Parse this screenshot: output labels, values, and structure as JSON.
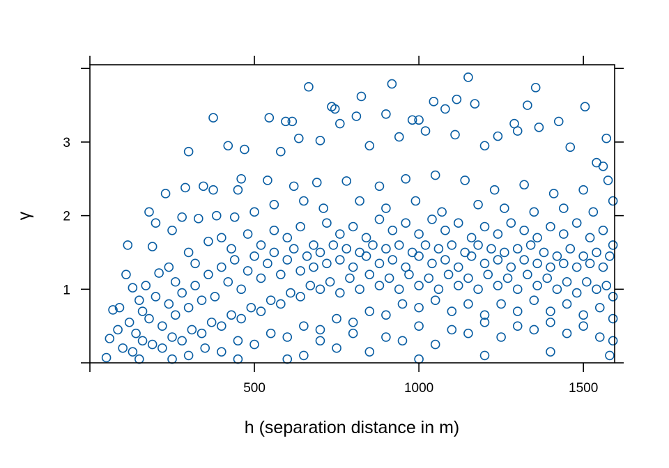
{
  "chart_data": {
    "type": "scatter",
    "title": "",
    "xlabel": "h (separation distance in m)",
    "ylabel": "γ",
    "xlim": [
      0,
      1595
    ],
    "ylim": [
      0,
      4.05
    ],
    "x_ticks": [
      0,
      500,
      1000,
      1500
    ],
    "x_tick_labels": [
      "",
      "500",
      "1000",
      "1500"
    ],
    "y_ticks": [
      0,
      1,
      2,
      3,
      4
    ],
    "y_tick_labels": [
      "",
      "1",
      "2",
      "3",
      ""
    ],
    "grid": false,
    "marker": "open-circle",
    "color": "#0a5ea3",
    "points": [
      [
        665,
        3.75
      ],
      [
        1150,
        3.88
      ],
      [
        1355,
        3.74
      ],
      [
        918,
        3.79
      ],
      [
        825,
        3.62
      ],
      [
        1505,
        3.48
      ],
      [
        1115,
        3.58
      ],
      [
        1045,
        3.55
      ],
      [
        735,
        3.48
      ],
      [
        745,
        3.45
      ],
      [
        375,
        3.33
      ],
      [
        545,
        3.33
      ],
      [
        595,
        3.28
      ],
      [
        615,
        3.28
      ],
      [
        760,
        3.25
      ],
      [
        810,
        3.35
      ],
      [
        900,
        3.38
      ],
      [
        980,
        3.3
      ],
      [
        1000,
        3.3
      ],
      [
        1080,
        3.45
      ],
      [
        1170,
        3.52
      ],
      [
        1290,
        3.25
      ],
      [
        1330,
        3.5
      ],
      [
        1425,
        3.28
      ],
      [
        1570,
        3.05
      ],
      [
        300,
        2.87
      ],
      [
        420,
        2.95
      ],
      [
        470,
        2.9
      ],
      [
        580,
        2.87
      ],
      [
        635,
        3.05
      ],
      [
        700,
        3.02
      ],
      [
        850,
        2.95
      ],
      [
        940,
        3.07
      ],
      [
        1020,
        3.15
      ],
      [
        1110,
        3.1
      ],
      [
        1200,
        2.95
      ],
      [
        1240,
        3.08
      ],
      [
        1300,
        3.15
      ],
      [
        1365,
        3.2
      ],
      [
        1460,
        2.93
      ],
      [
        1540,
        2.72
      ],
      [
        1560,
        2.67
      ],
      [
        180,
        2.05
      ],
      [
        230,
        2.3
      ],
      [
        290,
        2.38
      ],
      [
        345,
        2.4
      ],
      [
        375,
        2.35
      ],
      [
        450,
        2.35
      ],
      [
        460,
        2.5
      ],
      [
        540,
        2.48
      ],
      [
        620,
        2.4
      ],
      [
        690,
        2.45
      ],
      [
        780,
        2.47
      ],
      [
        880,
        2.4
      ],
      [
        960,
        2.5
      ],
      [
        1050,
        2.55
      ],
      [
        1140,
        2.48
      ],
      [
        1230,
        2.35
      ],
      [
        1320,
        2.42
      ],
      [
        1410,
        2.3
      ],
      [
        1500,
        2.35
      ],
      [
        1575,
        2.48
      ],
      [
        115,
        1.6
      ],
      [
        190,
        1.58
      ],
      [
        200,
        1.9
      ],
      [
        250,
        1.8
      ],
      [
        280,
        1.98
      ],
      [
        330,
        1.96
      ],
      [
        385,
        2.0
      ],
      [
        440,
        1.98
      ],
      [
        500,
        2.05
      ],
      [
        560,
        2.15
      ],
      [
        650,
        2.2
      ],
      [
        710,
        2.1
      ],
      [
        820,
        2.2
      ],
      [
        900,
        2.1
      ],
      [
        990,
        2.2
      ],
      [
        1070,
        2.05
      ],
      [
        1180,
        2.15
      ],
      [
        1260,
        2.1
      ],
      [
        1350,
        2.05
      ],
      [
        1440,
        2.1
      ],
      [
        1530,
        2.05
      ],
      [
        1590,
        2.2
      ],
      [
        110,
        1.2
      ],
      [
        70,
        0.72
      ],
      [
        90,
        0.75
      ],
      [
        60,
        0.33
      ],
      [
        50,
        0.07
      ],
      [
        85,
        0.45
      ],
      [
        130,
        1.02
      ],
      [
        150,
        0.85
      ],
      [
        170,
        1.05
      ],
      [
        210,
        1.22
      ],
      [
        240,
        1.3
      ],
      [
        260,
        1.1
      ],
      [
        300,
        1.5
      ],
      [
        320,
        1.35
      ],
      [
        360,
        1.65
      ],
      [
        400,
        1.7
      ],
      [
        430,
        1.55
      ],
      [
        480,
        1.75
      ],
      [
        520,
        1.6
      ],
      [
        560,
        1.8
      ],
      [
        600,
        1.7
      ],
      [
        640,
        1.85
      ],
      [
        680,
        1.6
      ],
      [
        720,
        1.9
      ],
      [
        760,
        1.75
      ],
      [
        800,
        1.85
      ],
      [
        840,
        1.7
      ],
      [
        880,
        1.95
      ],
      [
        920,
        1.8
      ],
      [
        960,
        1.9
      ],
      [
        1000,
        1.75
      ],
      [
        1040,
        1.95
      ],
      [
        1080,
        1.8
      ],
      [
        1120,
        1.9
      ],
      [
        1160,
        1.7
      ],
      [
        1200,
        1.85
      ],
      [
        1240,
        1.75
      ],
      [
        1280,
        1.9
      ],
      [
        1320,
        1.8
      ],
      [
        1360,
        1.7
      ],
      [
        1400,
        1.85
      ],
      [
        1440,
        1.75
      ],
      [
        1480,
        1.9
      ],
      [
        1520,
        1.7
      ],
      [
        1560,
        1.8
      ],
      [
        1590,
        1.6
      ],
      [
        120,
        0.55
      ],
      [
        140,
        0.4
      ],
      [
        160,
        0.7
      ],
      [
        180,
        0.6
      ],
      [
        200,
        0.9
      ],
      [
        220,
        0.5
      ],
      [
        240,
        0.8
      ],
      [
        260,
        0.65
      ],
      [
        280,
        0.95
      ],
      [
        300,
        0.75
      ],
      [
        320,
        1.05
      ],
      [
        340,
        0.85
      ],
      [
        360,
        1.2
      ],
      [
        380,
        0.9
      ],
      [
        400,
        1.3
      ],
      [
        420,
        1.1
      ],
      [
        440,
        1.4
      ],
      [
        460,
        1.0
      ],
      [
        480,
        1.25
      ],
      [
        500,
        1.45
      ],
      [
        520,
        1.15
      ],
      [
        540,
        1.35
      ],
      [
        560,
        1.5
      ],
      [
        580,
        1.2
      ],
      [
        600,
        1.4
      ],
      [
        620,
        1.55
      ],
      [
        640,
        1.25
      ],
      [
        660,
        1.45
      ],
      [
        680,
        1.3
      ],
      [
        700,
        1.5
      ],
      [
        720,
        1.35
      ],
      [
        740,
        1.6
      ],
      [
        760,
        1.4
      ],
      [
        780,
        1.55
      ],
      [
        800,
        1.3
      ],
      [
        820,
        1.5
      ],
      [
        840,
        1.45
      ],
      [
        860,
        1.6
      ],
      [
        880,
        1.35
      ],
      [
        900,
        1.55
      ],
      [
        920,
        1.4
      ],
      [
        940,
        1.6
      ],
      [
        960,
        1.3
      ],
      [
        980,
        1.5
      ],
      [
        1000,
        1.45
      ],
      [
        1020,
        1.6
      ],
      [
        1040,
        1.35
      ],
      [
        1060,
        1.55
      ],
      [
        1080,
        1.4
      ],
      [
        1100,
        1.6
      ],
      [
        1120,
        1.3
      ],
      [
        1140,
        1.5
      ],
      [
        1160,
        1.45
      ],
      [
        1180,
        1.6
      ],
      [
        1200,
        1.35
      ],
      [
        1220,
        1.55
      ],
      [
        1240,
        1.4
      ],
      [
        1260,
        1.5
      ],
      [
        1280,
        1.3
      ],
      [
        1300,
        1.55
      ],
      [
        1320,
        1.4
      ],
      [
        1340,
        1.6
      ],
      [
        1360,
        1.35
      ],
      [
        1380,
        1.5
      ],
      [
        1400,
        1.3
      ],
      [
        1420,
        1.45
      ],
      [
        1440,
        1.35
      ],
      [
        1460,
        1.55
      ],
      [
        1480,
        1.3
      ],
      [
        1500,
        1.45
      ],
      [
        1520,
        1.35
      ],
      [
        1540,
        1.5
      ],
      [
        1560,
        1.3
      ],
      [
        1580,
        1.45
      ],
      [
        100,
        0.2
      ],
      [
        130,
        0.15
      ],
      [
        160,
        0.3
      ],
      [
        190,
        0.25
      ],
      [
        220,
        0.2
      ],
      [
        250,
        0.35
      ],
      [
        280,
        0.3
      ],
      [
        310,
        0.45
      ],
      [
        340,
        0.4
      ],
      [
        370,
        0.55
      ],
      [
        400,
        0.5
      ],
      [
        430,
        0.65
      ],
      [
        460,
        0.6
      ],
      [
        490,
        0.75
      ],
      [
        520,
        0.7
      ],
      [
        550,
        0.85
      ],
      [
        580,
        0.8
      ],
      [
        610,
        0.95
      ],
      [
        640,
        0.9
      ],
      [
        670,
        1.05
      ],
      [
        700,
        1.0
      ],
      [
        730,
        1.1
      ],
      [
        760,
        0.95
      ],
      [
        790,
        1.15
      ],
      [
        820,
        1.0
      ],
      [
        850,
        1.2
      ],
      [
        880,
        1.05
      ],
      [
        910,
        1.15
      ],
      [
        940,
        1.0
      ],
      [
        970,
        1.2
      ],
      [
        1000,
        1.05
      ],
      [
        1030,
        1.15
      ],
      [
        1060,
        1.0
      ],
      [
        1090,
        1.2
      ],
      [
        1120,
        1.05
      ],
      [
        1150,
        1.15
      ],
      [
        1180,
        1.0
      ],
      [
        1210,
        1.2
      ],
      [
        1240,
        1.05
      ],
      [
        1270,
        1.15
      ],
      [
        1300,
        1.0
      ],
      [
        1330,
        1.2
      ],
      [
        1360,
        1.05
      ],
      [
        1390,
        1.15
      ],
      [
        1420,
        1.0
      ],
      [
        1450,
        1.1
      ],
      [
        1480,
        0.95
      ],
      [
        1510,
        1.1
      ],
      [
        1540,
        1.0
      ],
      [
        1570,
        1.05
      ],
      [
        1590,
        0.9
      ],
      [
        300,
        0.1
      ],
      [
        350,
        0.2
      ],
      [
        400,
        0.15
      ],
      [
        450,
        0.3
      ],
      [
        500,
        0.25
      ],
      [
        550,
        0.4
      ],
      [
        600,
        0.35
      ],
      [
        650,
        0.5
      ],
      [
        700,
        0.45
      ],
      [
        750,
        0.6
      ],
      [
        800,
        0.55
      ],
      [
        850,
        0.7
      ],
      [
        900,
        0.65
      ],
      [
        950,
        0.8
      ],
      [
        1000,
        0.75
      ],
      [
        1050,
        0.85
      ],
      [
        1100,
        0.7
      ],
      [
        1150,
        0.8
      ],
      [
        1200,
        0.65
      ],
      [
        1250,
        0.8
      ],
      [
        1300,
        0.7
      ],
      [
        1350,
        0.85
      ],
      [
        1400,
        0.7
      ],
      [
        1450,
        0.8
      ],
      [
        1500,
        0.65
      ],
      [
        1550,
        0.75
      ],
      [
        1590,
        0.6
      ],
      [
        650,
        0.1
      ],
      [
        750,
        0.2
      ],
      [
        850,
        0.15
      ],
      [
        950,
        0.3
      ],
      [
        1050,
        0.25
      ],
      [
        1150,
        0.4
      ],
      [
        1250,
        0.35
      ],
      [
        1350,
        0.45
      ],
      [
        1450,
        0.4
      ],
      [
        1550,
        0.35
      ],
      [
        700,
        0.3
      ],
      [
        800,
        0.4
      ],
      [
        900,
        0.35
      ],
      [
        1000,
        0.5
      ],
      [
        1100,
        0.45
      ],
      [
        1200,
        0.55
      ],
      [
        1300,
        0.5
      ],
      [
        1400,
        0.55
      ],
      [
        1500,
        0.5
      ],
      [
        1590,
        0.3
      ],
      [
        1000,
        0.05
      ],
      [
        1200,
        0.1
      ],
      [
        1400,
        0.15
      ],
      [
        1580,
        0.1
      ],
      [
        600,
        0.05
      ],
      [
        450,
        0.05
      ],
      [
        250,
        0.05
      ],
      [
        150,
        0.05
      ]
    ]
  }
}
